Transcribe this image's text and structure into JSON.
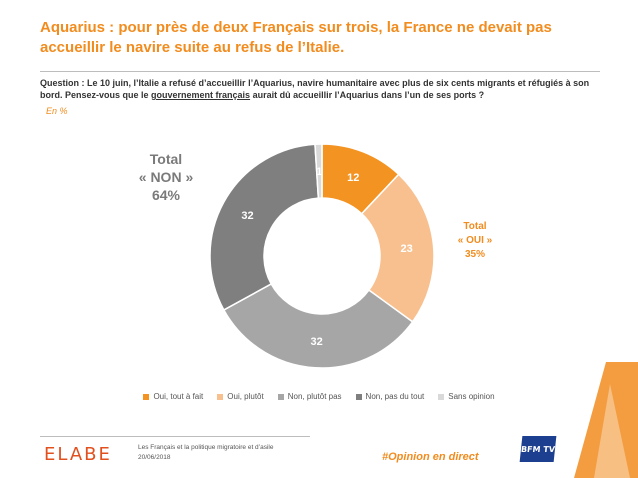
{
  "title": "Aquarius :  pour près de deux Français sur trois, la France ne devait pas accueillir le navire suite au refus de l’Italie.",
  "question": {
    "before": "Question : Le 10 juin, l’Italie a refusé d’accueillir l’Aquarius, navire humanitaire avec plus de six cents migrants et réfugiés à son bord. Pensez-vous que le ",
    "underlined": "gouvernement français",
    "after": " aurait dû accueillir l’Aquarius dans l’un de ses ports ?"
  },
  "unit": "En  %",
  "totals": {
    "non": {
      "line1": "Total",
      "line2": "« NON »",
      "line3": "64%"
    },
    "oui": {
      "line1": "Total",
      "line2": "« OUI »",
      "line3": "35%"
    }
  },
  "chart_data": {
    "type": "pie",
    "variant": "donut",
    "categories": [
      "Oui, tout à fait",
      "Oui, plutôt",
      "Non, plutôt pas",
      "Non, pas du tout",
      "Sans opinion"
    ],
    "values": [
      12,
      23,
      32,
      32,
      1
    ],
    "colors": [
      "#f39322",
      "#f9c08f",
      "#a6a6a6",
      "#7f7f7f",
      "#d9d9d9"
    ],
    "label_colors": [
      "#ffffff",
      "#ffffff",
      "#ffffff",
      "#ffffff",
      "#ffffff"
    ],
    "legend_position": "bottom",
    "unit": "%"
  },
  "footer": {
    "logo": "ELABE",
    "line1": "Les Français et la politique migratoire et d’asile",
    "line2": "20/06/2018",
    "hashtag": "#Opinion en direct",
    "tv_logo": "BFM TV"
  }
}
